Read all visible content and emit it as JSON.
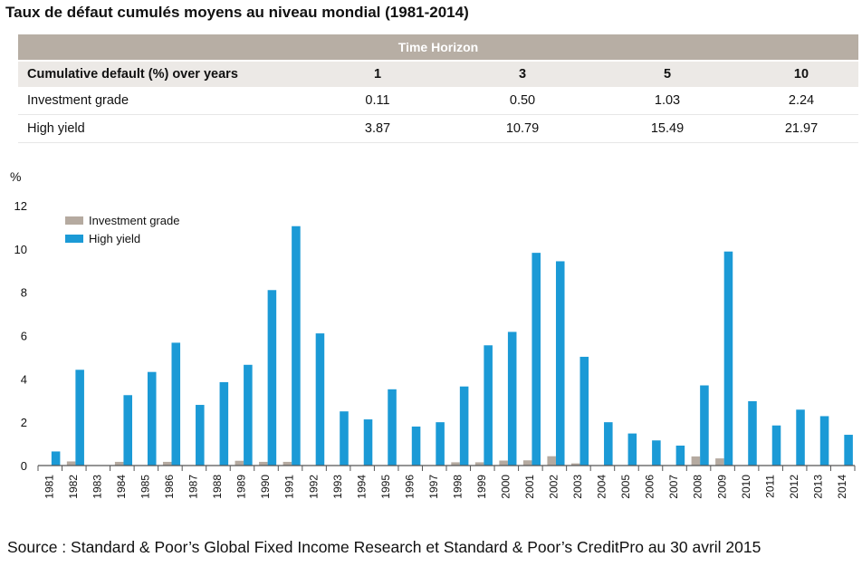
{
  "title": "Taux de défaut cumulés moyens au niveau mondial (1981-2014)",
  "table": {
    "band": "Time Horizon",
    "header": [
      "Cumulative default (%) over years",
      "1",
      "3",
      "5",
      "10"
    ],
    "rows": [
      {
        "label": "Investment grade",
        "values": [
          "0.11",
          "0.50",
          "1.03",
          "2.24"
        ]
      },
      {
        "label": "High yield",
        "values": [
          "3.87",
          "10.79",
          "15.49",
          "21.97"
        ]
      }
    ]
  },
  "colors": {
    "investment_grade": "#b5aaa0",
    "high_yield": "#1b9ad6",
    "axis": "#555555"
  },
  "chart_data": {
    "type": "bar",
    "ylabel": "%",
    "ylim": [
      0,
      12
    ],
    "yticks": [
      0,
      2,
      4,
      6,
      8,
      10,
      12
    ],
    "legend": "top-left",
    "grid": false,
    "categories": [
      "1981",
      "1982",
      "1983",
      "1984",
      "1985",
      "1986",
      "1987",
      "1988",
      "1989",
      "1990",
      "1991",
      "1992",
      "1993",
      "1994",
      "1995",
      "1996",
      "1997",
      "1998",
      "1999",
      "2000",
      "2001",
      "2002",
      "2003",
      "2004",
      "2005",
      "2006",
      "2007",
      "2008",
      "2009",
      "2010",
      "2011",
      "2012",
      "2013",
      "2014"
    ],
    "series": [
      {
        "name": "Investment grade",
        "values": [
          0,
          0.19,
          0,
          0.17,
          0,
          0.17,
          0,
          0,
          0.22,
          0.17,
          0.17,
          0,
          0,
          0,
          0,
          0,
          0,
          0.15,
          0.15,
          0.23,
          0.24,
          0.43,
          0.1,
          0,
          0,
          0,
          0,
          0.42,
          0.33,
          0,
          0,
          0,
          0,
          0
        ]
      },
      {
        "name": "High yield",
        "values": [
          0.65,
          4.42,
          0,
          3.25,
          4.32,
          5.67,
          2.8,
          3.85,
          4.65,
          8.1,
          11.05,
          6.1,
          2.5,
          2.13,
          3.52,
          1.8,
          2.0,
          3.65,
          5.55,
          6.17,
          9.82,
          9.43,
          5.02,
          2.0,
          1.48,
          1.16,
          0.92,
          3.7,
          9.88,
          2.97,
          1.85,
          2.58,
          2.28,
          1.42
        ]
      }
    ]
  },
  "source": "Source : Standard & Poor’s Global Fixed Income Research et Standard & Poor’s CreditPro au 30 avril 2015"
}
